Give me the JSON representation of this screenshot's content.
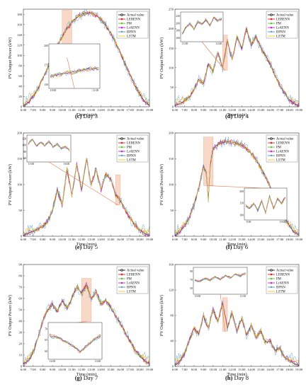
{
  "legend_labels": [
    "Actual value",
    "LERENN",
    "PM",
    "LrAENN",
    "BPNN",
    "LSTM"
  ],
  "series_colors": {
    "Actual value": "#1a1a1a",
    "LERENN": "#e3242b",
    "PM": "#5fc83b",
    "LrAENN": "#c528c7",
    "BPNN": "#3d8fe0",
    "LSTM": "#f2c418"
  },
  "highlight_color": "#f6b89a",
  "chart_data": [
    {
      "type": "line",
      "caption_letter": "(c)",
      "caption_rest": " Day 3",
      "xlabel": "Time (min)",
      "ylabel": "PV Output Power (kW)",
      "x_ticks": [
        "6:00",
        "7:00",
        "8:00",
        "9:00",
        "10:00",
        "11:00",
        "12:00",
        "13:00",
        "14:00",
        "15:00",
        "16:00",
        "17:00",
        "18:00",
        "19:00"
      ],
      "y_ticks": [
        0,
        20,
        40,
        60,
        80,
        100,
        120,
        140,
        160,
        180
      ],
      "ylim": [
        0,
        190
      ],
      "actual_profile": [
        [
          6,
          2
        ],
        [
          6.5,
          8
        ],
        [
          7,
          20
        ],
        [
          7.5,
          35
        ],
        [
          8,
          55
        ],
        [
          8.5,
          75
        ],
        [
          9,
          98
        ],
        [
          9.5,
          118
        ],
        [
          10,
          136
        ],
        [
          10.5,
          152
        ],
        [
          11,
          165
        ],
        [
          11.5,
          174
        ],
        [
          12,
          180
        ],
        [
          12.5,
          183
        ],
        [
          13,
          182
        ],
        [
          13.5,
          178
        ],
        [
          14,
          170
        ],
        [
          14.5,
          158
        ],
        [
          15,
          143
        ],
        [
          15.5,
          125
        ],
        [
          16,
          105
        ],
        [
          16.5,
          84
        ],
        [
          17,
          62
        ],
        [
          17.5,
          42
        ],
        [
          18,
          24
        ],
        [
          18.5,
          10
        ],
        [
          19,
          3
        ]
      ],
      "highlight_x": [
        10,
        11
      ],
      "inset": {
        "x_ticks": [
          "10:00",
          "11:00"
        ],
        "y_ticks": [
          150,
          175,
          200
        ],
        "ylim": [
          150,
          200
        ],
        "actual_profile": [
          [
            10,
            161
          ],
          [
            10.25,
            164
          ],
          [
            10.5,
            167
          ],
          [
            10.75,
            170
          ],
          [
            11,
            172
          ]
        ]
      }
    },
    {
      "type": "line",
      "caption_letter": "(d)",
      "caption_rest": " Day 4",
      "xlabel": "Time (min)",
      "ylabel": "PV Output Power (kW)",
      "x_ticks": [
        "6:00",
        "7:00",
        "8:00",
        "9:00",
        "10:00",
        "11:00",
        "12:00",
        "13:00",
        "14:00",
        "15:00",
        "16:00",
        "17:00",
        "18:00",
        "19:00"
      ],
      "y_ticks": [
        0,
        50,
        100,
        150,
        200,
        250
      ],
      "ylim": [
        0,
        250
      ],
      "actual_profile": [
        [
          6,
          3
        ],
        [
          6.5,
          8
        ],
        [
          7,
          15
        ],
        [
          7.5,
          25
        ],
        [
          8,
          45
        ],
        [
          8.5,
          70
        ],
        [
          9,
          60
        ],
        [
          9.5,
          110
        ],
        [
          10,
          90
        ],
        [
          10.5,
          140
        ],
        [
          11,
          100
        ],
        [
          11.5,
          170
        ],
        [
          12,
          120
        ],
        [
          12.5,
          180
        ],
        [
          13,
          150
        ],
        [
          13.5,
          200
        ],
        [
          14,
          160
        ],
        [
          14.5,
          180
        ],
        [
          15,
          150
        ],
        [
          15.5,
          130
        ],
        [
          16,
          110
        ],
        [
          16.5,
          80
        ],
        [
          17,
          55
        ],
        [
          17.5,
          35
        ],
        [
          18,
          18
        ],
        [
          18.5,
          8
        ],
        [
          19,
          3
        ]
      ],
      "highlight_x": [
        11,
        11.5
      ],
      "inset": {
        "x_ticks": [
          "11:00",
          "12:00"
        ],
        "y_ticks": [
          160,
          180,
          200,
          220
        ],
        "ylim": [
          160,
          225
        ],
        "actual_profile": [
          [
            11,
            170
          ],
          [
            11.1,
            190
          ],
          [
            11.2,
            200
          ],
          [
            11.3,
            185
          ],
          [
            11.4,
            205
          ],
          [
            11.5,
            198
          ],
          [
            11.6,
            210
          ],
          [
            11.7,
            195
          ],
          [
            11.8,
            215
          ],
          [
            11.9,
            208
          ],
          [
            12,
            212
          ]
        ]
      }
    },
    {
      "type": "line",
      "caption_letter": "(e)",
      "caption_rest": " Day 5",
      "xlabel": "Time (min)",
      "ylabel": "PV Output Power (kW)",
      "x_ticks": [
        "6:00",
        "7:00",
        "8:00",
        "9:00",
        "10:00",
        "11:00",
        "12:00",
        "13:00",
        "14:00",
        "15:00",
        "16:00",
        "17:00",
        "18:00",
        "19:00"
      ],
      "y_ticks": [
        0,
        50,
        100,
        150,
        200
      ],
      "ylim": [
        0,
        200
      ],
      "actual_profile": [
        [
          6,
          2
        ],
        [
          6.5,
          6
        ],
        [
          7,
          10
        ],
        [
          7.5,
          14
        ],
        [
          8,
          20
        ],
        [
          8.5,
          28
        ],
        [
          9,
          50
        ],
        [
          9.5,
          90
        ],
        [
          10,
          60
        ],
        [
          10.5,
          130
        ],
        [
          11,
          80
        ],
        [
          11.5,
          140
        ],
        [
          12,
          90
        ],
        [
          12.5,
          150
        ],
        [
          13,
          100
        ],
        [
          13.5,
          130
        ],
        [
          14,
          90
        ],
        [
          14.5,
          120
        ],
        [
          15,
          110
        ],
        [
          15.5,
          80
        ],
        [
          16,
          70
        ],
        [
          16.5,
          50
        ],
        [
          17,
          35
        ],
        [
          17.5,
          22
        ],
        [
          18,
          12
        ],
        [
          18.5,
          5
        ],
        [
          19,
          2
        ]
      ],
      "highlight_x": [
        15.5,
        16
      ],
      "inset": {
        "x_ticks": [
          "15:00",
          "16:00"
        ],
        "y_ticks": [
          60,
          80,
          100,
          120
        ],
        "ylim": [
          60,
          125
        ],
        "actual_profile": [
          [
            15,
            105
          ],
          [
            15.1,
            118
          ],
          [
            15.2,
            98
          ],
          [
            15.3,
            110
          ],
          [
            15.4,
            100
          ],
          [
            15.5,
            112
          ],
          [
            15.6,
            95
          ],
          [
            15.7,
            104
          ],
          [
            15.8,
            90
          ],
          [
            15.9,
            96
          ],
          [
            16,
            85
          ]
        ]
      }
    },
    {
      "type": "line",
      "caption_letter": "(f)",
      "caption_rest": " Day 6",
      "xlabel": "Time (min)",
      "ylabel": "PV Output Power (kW)",
      "x_ticks": [
        "6:00",
        "7:00",
        "8:00",
        "9:00",
        "10:00",
        "11:00",
        "12:00",
        "13:00",
        "14:00",
        "15:00",
        "16:00",
        "17:00",
        "18:00",
        "19:00"
      ],
      "y_ticks": [
        0,
        50,
        100,
        150,
        200
      ],
      "ylim": [
        0,
        200
      ],
      "actual_profile": [
        [
          6,
          2
        ],
        [
          6.5,
          8
        ],
        [
          7,
          20
        ],
        [
          7.5,
          35
        ],
        [
          8,
          60
        ],
        [
          8.5,
          95
        ],
        [
          9,
          135
        ],
        [
          9.3,
          120
        ],
        [
          9.5,
          70
        ],
        [
          9.7,
          140
        ],
        [
          10,
          170
        ],
        [
          10.5,
          178
        ],
        [
          11,
          182
        ],
        [
          11.5,
          183
        ],
        [
          12,
          182
        ],
        [
          12.5,
          180
        ],
        [
          13,
          176
        ],
        [
          13.5,
          170
        ],
        [
          14,
          160
        ],
        [
          14.5,
          148
        ],
        [
          15,
          132
        ],
        [
          15.5,
          115
        ],
        [
          16,
          95
        ],
        [
          16.5,
          75
        ],
        [
          17,
          55
        ],
        [
          17.5,
          36
        ],
        [
          18,
          20
        ],
        [
          18.5,
          8
        ],
        [
          19,
          3
        ]
      ],
      "highlight_x": [
        9,
        10
      ],
      "inset": {
        "x_ticks": [
          "9:00",
          "10:00"
        ],
        "y_ticks": [
          100,
          150,
          200
        ],
        "ylim": [
          95,
          205
        ],
        "actual_profile": [
          [
            9,
            140
          ],
          [
            9.1,
            130
          ],
          [
            9.2,
            150
          ],
          [
            9.3,
            120
          ],
          [
            9.4,
            160
          ],
          [
            9.5,
            110
          ],
          [
            9.6,
            180
          ],
          [
            9.7,
            130
          ],
          [
            9.8,
            170
          ],
          [
            9.9,
            150
          ],
          [
            10,
            175
          ]
        ]
      }
    },
    {
      "type": "line",
      "caption_letter": "(g)",
      "caption_rest": " Day 7",
      "xlabel": "Time (min)",
      "ylabel": "PV Output Power (kW)",
      "x_ticks": [
        "6:00",
        "7:00",
        "8:00",
        "9:00",
        "10:00",
        "11:00",
        "12:00",
        "13:00",
        "14:00",
        "15:00",
        "16:00",
        "17:00",
        "18:00",
        "19:00"
      ],
      "y_ticks": [
        0,
        10,
        20,
        30,
        40,
        50,
        60,
        70,
        80,
        90
      ],
      "ylim": [
        0,
        90
      ],
      "actual_profile": [
        [
          6,
          2
        ],
        [
          6.5,
          5
        ],
        [
          7,
          12
        ],
        [
          7.5,
          25
        ],
        [
          8,
          40
        ],
        [
          8.5,
          50
        ],
        [
          9,
          55
        ],
        [
          9.5,
          48
        ],
        [
          10,
          58
        ],
        [
          10.5,
          52
        ],
        [
          11,
          60
        ],
        [
          11.5,
          70
        ],
        [
          12,
          65
        ],
        [
          12.5,
          72
        ],
        [
          13,
          60
        ],
        [
          13.5,
          66
        ],
        [
          14,
          55
        ],
        [
          14.5,
          58
        ],
        [
          15,
          52
        ],
        [
          15.5,
          45
        ],
        [
          16,
          38
        ],
        [
          16.5,
          30
        ],
        [
          17,
          22
        ],
        [
          17.5,
          15
        ],
        [
          18,
          9
        ],
        [
          18.5,
          5
        ],
        [
          19,
          2
        ]
      ],
      "highlight_x": [
        12,
        13
      ],
      "inset": {
        "x_ticks": [
          "12:00",
          "13:00"
        ],
        "y_ticks": [
          60,
          65,
          70
        ],
        "ylim": [
          58,
          72
        ],
        "actual_profile": [
          [
            12,
            67
          ],
          [
            12.2,
            66
          ],
          [
            12.4,
            63
          ],
          [
            12.6,
            60
          ],
          [
            12.8,
            64
          ],
          [
            13,
            67
          ]
        ]
      }
    },
    {
      "type": "line",
      "caption_letter": "(h)",
      "caption_rest": " Day 8",
      "xlabel": "Time (min)",
      "ylabel": "PV Output Power (kW)",
      "x_ticks": [
        "6:00",
        "7:00",
        "8:00",
        "9:00",
        "10:00",
        "11:00",
        "12:00",
        "13:00",
        "14:00",
        "15:00",
        "16:00",
        "17:00",
        "18:00",
        "19:00"
      ],
      "y_ticks": [
        0,
        40,
        80,
        120,
        160
      ],
      "ylim": [
        0,
        160
      ],
      "actual_profile": [
        [
          6,
          2
        ],
        [
          6.5,
          8
        ],
        [
          7,
          20
        ],
        [
          7.5,
          40
        ],
        [
          8,
          60
        ],
        [
          8.5,
          50
        ],
        [
          9,
          80
        ],
        [
          9.5,
          60
        ],
        [
          10,
          90
        ],
        [
          10.5,
          70
        ],
        [
          11,
          100
        ],
        [
          11.5,
          60
        ],
        [
          12,
          85
        ],
        [
          12.5,
          55
        ],
        [
          13,
          75
        ],
        [
          13.5,
          50
        ],
        [
          14,
          65
        ],
        [
          14.5,
          45
        ],
        [
          15,
          55
        ],
        [
          15.5,
          38
        ],
        [
          16,
          40
        ],
        [
          16.5,
          25
        ],
        [
          17,
          28
        ],
        [
          17.5,
          14
        ],
        [
          18,
          10
        ],
        [
          18.5,
          4
        ],
        [
          19,
          2
        ]
      ],
      "highlight_x": [
        11,
        11.5
      ],
      "inset": {
        "x_ticks": [
          "10:00",
          "11:00"
        ],
        "y_ticks": [
          50,
          70,
          90
        ],
        "ylim": [
          45,
          95
        ],
        "actual_profile": [
          [
            10,
            70
          ],
          [
            10.1,
            66
          ],
          [
            10.2,
            74
          ],
          [
            10.3,
            70
          ],
          [
            10.4,
            78
          ],
          [
            10.5,
            72
          ],
          [
            10.6,
            80
          ],
          [
            10.7,
            76
          ],
          [
            10.8,
            84
          ],
          [
            10.9,
            80
          ],
          [
            11,
            86
          ]
        ]
      }
    }
  ]
}
